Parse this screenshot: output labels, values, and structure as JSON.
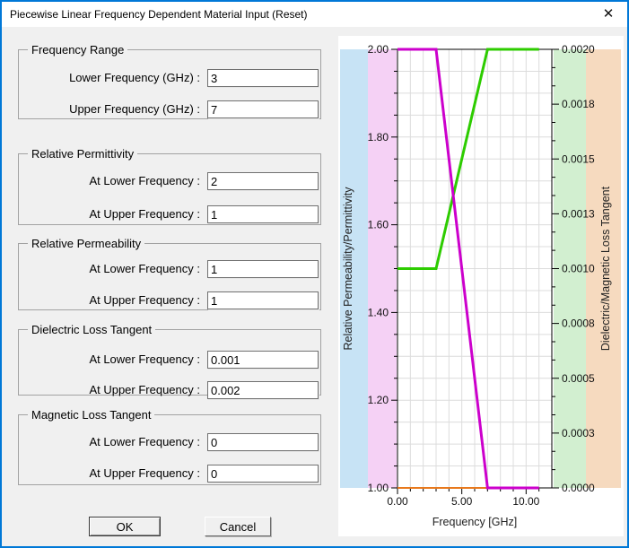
{
  "window": {
    "title": "Piecewise Linear Frequency Dependent Material Input (Reset)",
    "close_icon": "✕"
  },
  "form": {
    "groups": [
      {
        "title": "Frequency Range",
        "fields": [
          {
            "label": "Lower Frequency (GHz) :",
            "value": "3"
          },
          {
            "label": "Upper Frequency (GHz) :",
            "value": "7"
          }
        ]
      },
      {
        "title": "Relative Permittivity",
        "fields": [
          {
            "label": "At Lower Frequency :",
            "value": "2"
          },
          {
            "label": "At Upper Frequency :",
            "value": "1"
          }
        ]
      },
      {
        "title": "Relative Permeability",
        "fields": [
          {
            "label": "At Lower Frequency :",
            "value": "1"
          },
          {
            "label": "At Upper Frequency :",
            "value": "1"
          }
        ]
      },
      {
        "title": "Dielectric Loss Tangent",
        "fields": [
          {
            "label": "At Lower Frequency :",
            "value": "0.001"
          },
          {
            "label": "At Upper Frequency :",
            "value": "0.002"
          }
        ]
      },
      {
        "title": "Magnetic Loss Tangent",
        "fields": [
          {
            "label": "At Lower Frequency :",
            "value": "0"
          },
          {
            "label": "At Upper Frequency :",
            "value": "0"
          }
        ]
      }
    ],
    "buttons": {
      "ok": "OK",
      "cancel": "Cancel"
    }
  },
  "chart_data": {
    "type": "line",
    "title": "",
    "xlabel": "Frequency [GHz]",
    "ylabel_left": "Relative Permeability/Permittivity",
    "ylabel_right": "Dielectric/Magnetic Loss Tangent",
    "xlim": [
      0,
      12
    ],
    "ylim_left": [
      1.0,
      2.0
    ],
    "ylim_right": [
      0.0,
      0.002
    ],
    "x_ticks": [
      {
        "value": 0,
        "label": "0.00"
      },
      {
        "value": 5,
        "label": "5.00"
      },
      {
        "value": 10,
        "label": "10.00"
      }
    ],
    "y_ticks_left": [
      "2.00",
      "1.80",
      "1.60",
      "1.40",
      "1.20",
      "1.00"
    ],
    "y_ticks_right": [
      "0.0020",
      "0.0018",
      "0.0015",
      "0.0013",
      "0.0010",
      "0.0008",
      "0.0005",
      "0.0003",
      "0.0000"
    ],
    "grid": true,
    "legend": "none",
    "background_bands": [
      {
        "name": "left-title-band",
        "color": "#c7e3f5"
      },
      {
        "name": "left-ticks-band",
        "color": "#f5d1f5"
      },
      {
        "name": "right-ticks-band",
        "color": "#d2efd0"
      },
      {
        "name": "right-title-band",
        "color": "#f6dabf"
      }
    ],
    "series": [
      {
        "name": "relative-permittivity",
        "axis": "left",
        "color": "#cc00cc",
        "x": [
          0,
          3,
          7,
          11
        ],
        "y": [
          2,
          2,
          1,
          1
        ],
        "z": 3
      },
      {
        "name": "dielectric-loss-tangent",
        "axis": "right",
        "color": "#2dcc00",
        "x": [
          0,
          3,
          7,
          11
        ],
        "y": [
          0.001,
          0.001,
          0.002,
          0.002
        ],
        "z": 1
      },
      {
        "name": "magnetic-loss-tangent",
        "axis": "right",
        "color": "#e8791c",
        "x": [
          0,
          11
        ],
        "y": [
          0,
          0
        ],
        "z": 2
      }
    ]
  }
}
